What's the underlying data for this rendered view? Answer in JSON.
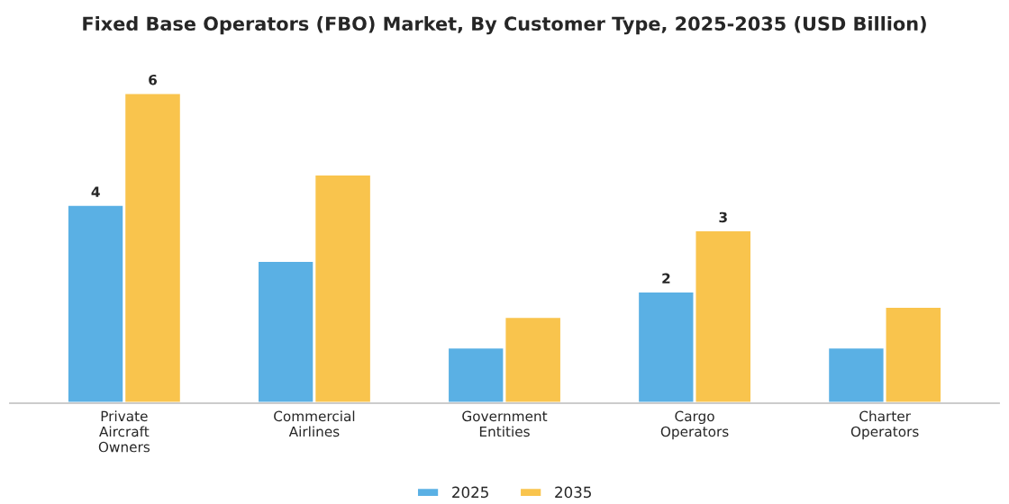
{
  "chart_data": {
    "type": "bar",
    "title": "Fixed Base Operators (FBO) Market, By Customer Type, 2025-2035 (USD Billion)",
    "categories": [
      "Private Aircraft Owners",
      "Commercial Airlines",
      "Government Entities",
      "Cargo Operators",
      "Charter Operators"
    ],
    "series": [
      {
        "name": "2025",
        "color": "#5ab0e4",
        "values": [
          3.9,
          2.8,
          1.1,
          2.2,
          1.1
        ],
        "value_labels": [
          "4",
          null,
          null,
          "2",
          null
        ]
      },
      {
        "name": "2035",
        "color": "#f9c44d",
        "values": [
          6.1,
          4.5,
          1.7,
          3.4,
          1.9
        ],
        "value_labels": [
          "6",
          null,
          null,
          "3",
          null
        ]
      }
    ],
    "legend": "bottom",
    "grid": false
  }
}
